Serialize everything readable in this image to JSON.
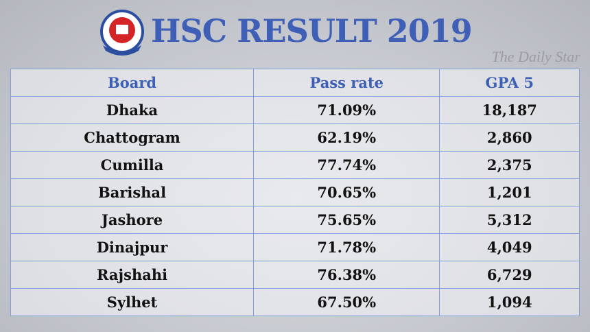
{
  "header": {
    "title": "HSC RESULT 2019",
    "watermark": "The Daily Star"
  },
  "table": {
    "columns": [
      "Board",
      "Pass rate",
      "GPA 5"
    ],
    "rows": [
      [
        "Dhaka",
        "71.09%",
        "18,187"
      ],
      [
        "Chattogram",
        "62.19%",
        "2,860"
      ],
      [
        "Cumilla",
        "77.74%",
        "2,375"
      ],
      [
        "Barishal",
        "70.65%",
        "1,201"
      ],
      [
        "Jashore",
        "75.65%",
        "5,312"
      ],
      [
        "Dinajpur",
        "71.78%",
        "4,049"
      ],
      [
        "Rajshahi",
        "76.38%",
        "6,729"
      ],
      [
        "Sylhet",
        "67.50%",
        "1,094"
      ]
    ]
  }
}
